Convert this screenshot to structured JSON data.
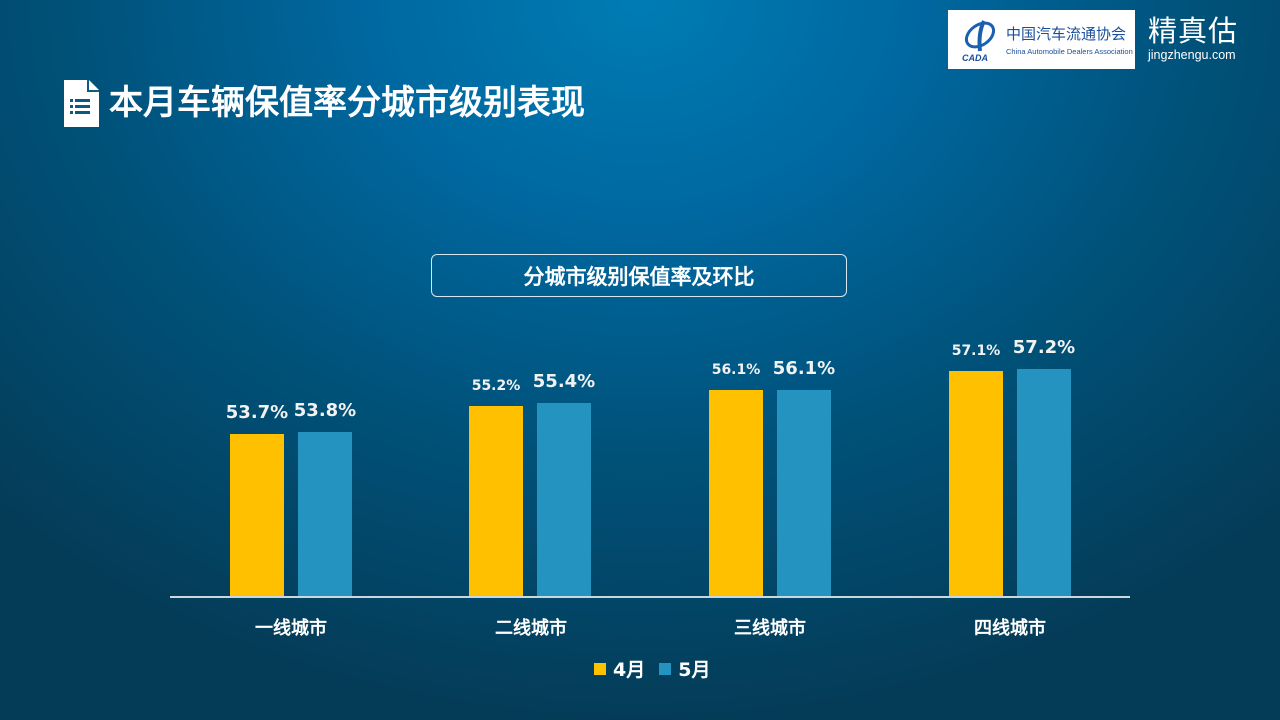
{
  "header": {
    "logo": {
      "name_cn": "中国汽车流通协会",
      "name_en": "China Automobile Dealers Association",
      "mark_text": "CADA"
    },
    "brand": {
      "name_cn": "精真估",
      "domain": "jingzhengu.com"
    }
  },
  "page": {
    "title": "本月车辆保值率分城市级别表现",
    "title_icon": "document-list-icon"
  },
  "colors": {
    "april": "#FFC000",
    "may": "#2593C0",
    "background_center": "#007CB4",
    "background_edge": "#043C58"
  },
  "chart_data": {
    "type": "bar",
    "title": "分城市级别保值率及环比",
    "categories": [
      "一线城市",
      "二线城市",
      "三线城市",
      "四线城市"
    ],
    "series": [
      {
        "name": "4月",
        "values": [
          53.7,
          55.2,
          56.1,
          57.1
        ],
        "labels": [
          "53.7%",
          "55.2%",
          "56.1%",
          "57.1%"
        ],
        "color": "#FFC000"
      },
      {
        "name": "5月",
        "values": [
          53.8,
          55.4,
          56.1,
          57.2
        ],
        "labels": [
          "53.8%",
          "55.4%",
          "56.1%",
          "57.2%"
        ],
        "color": "#2593C0"
      }
    ],
    "xlabel": "",
    "ylabel": "",
    "unit": "%",
    "ylim": [
      45,
      60
    ],
    "grid": false,
    "y_axis_visible": false,
    "legend_position": "bottom"
  }
}
